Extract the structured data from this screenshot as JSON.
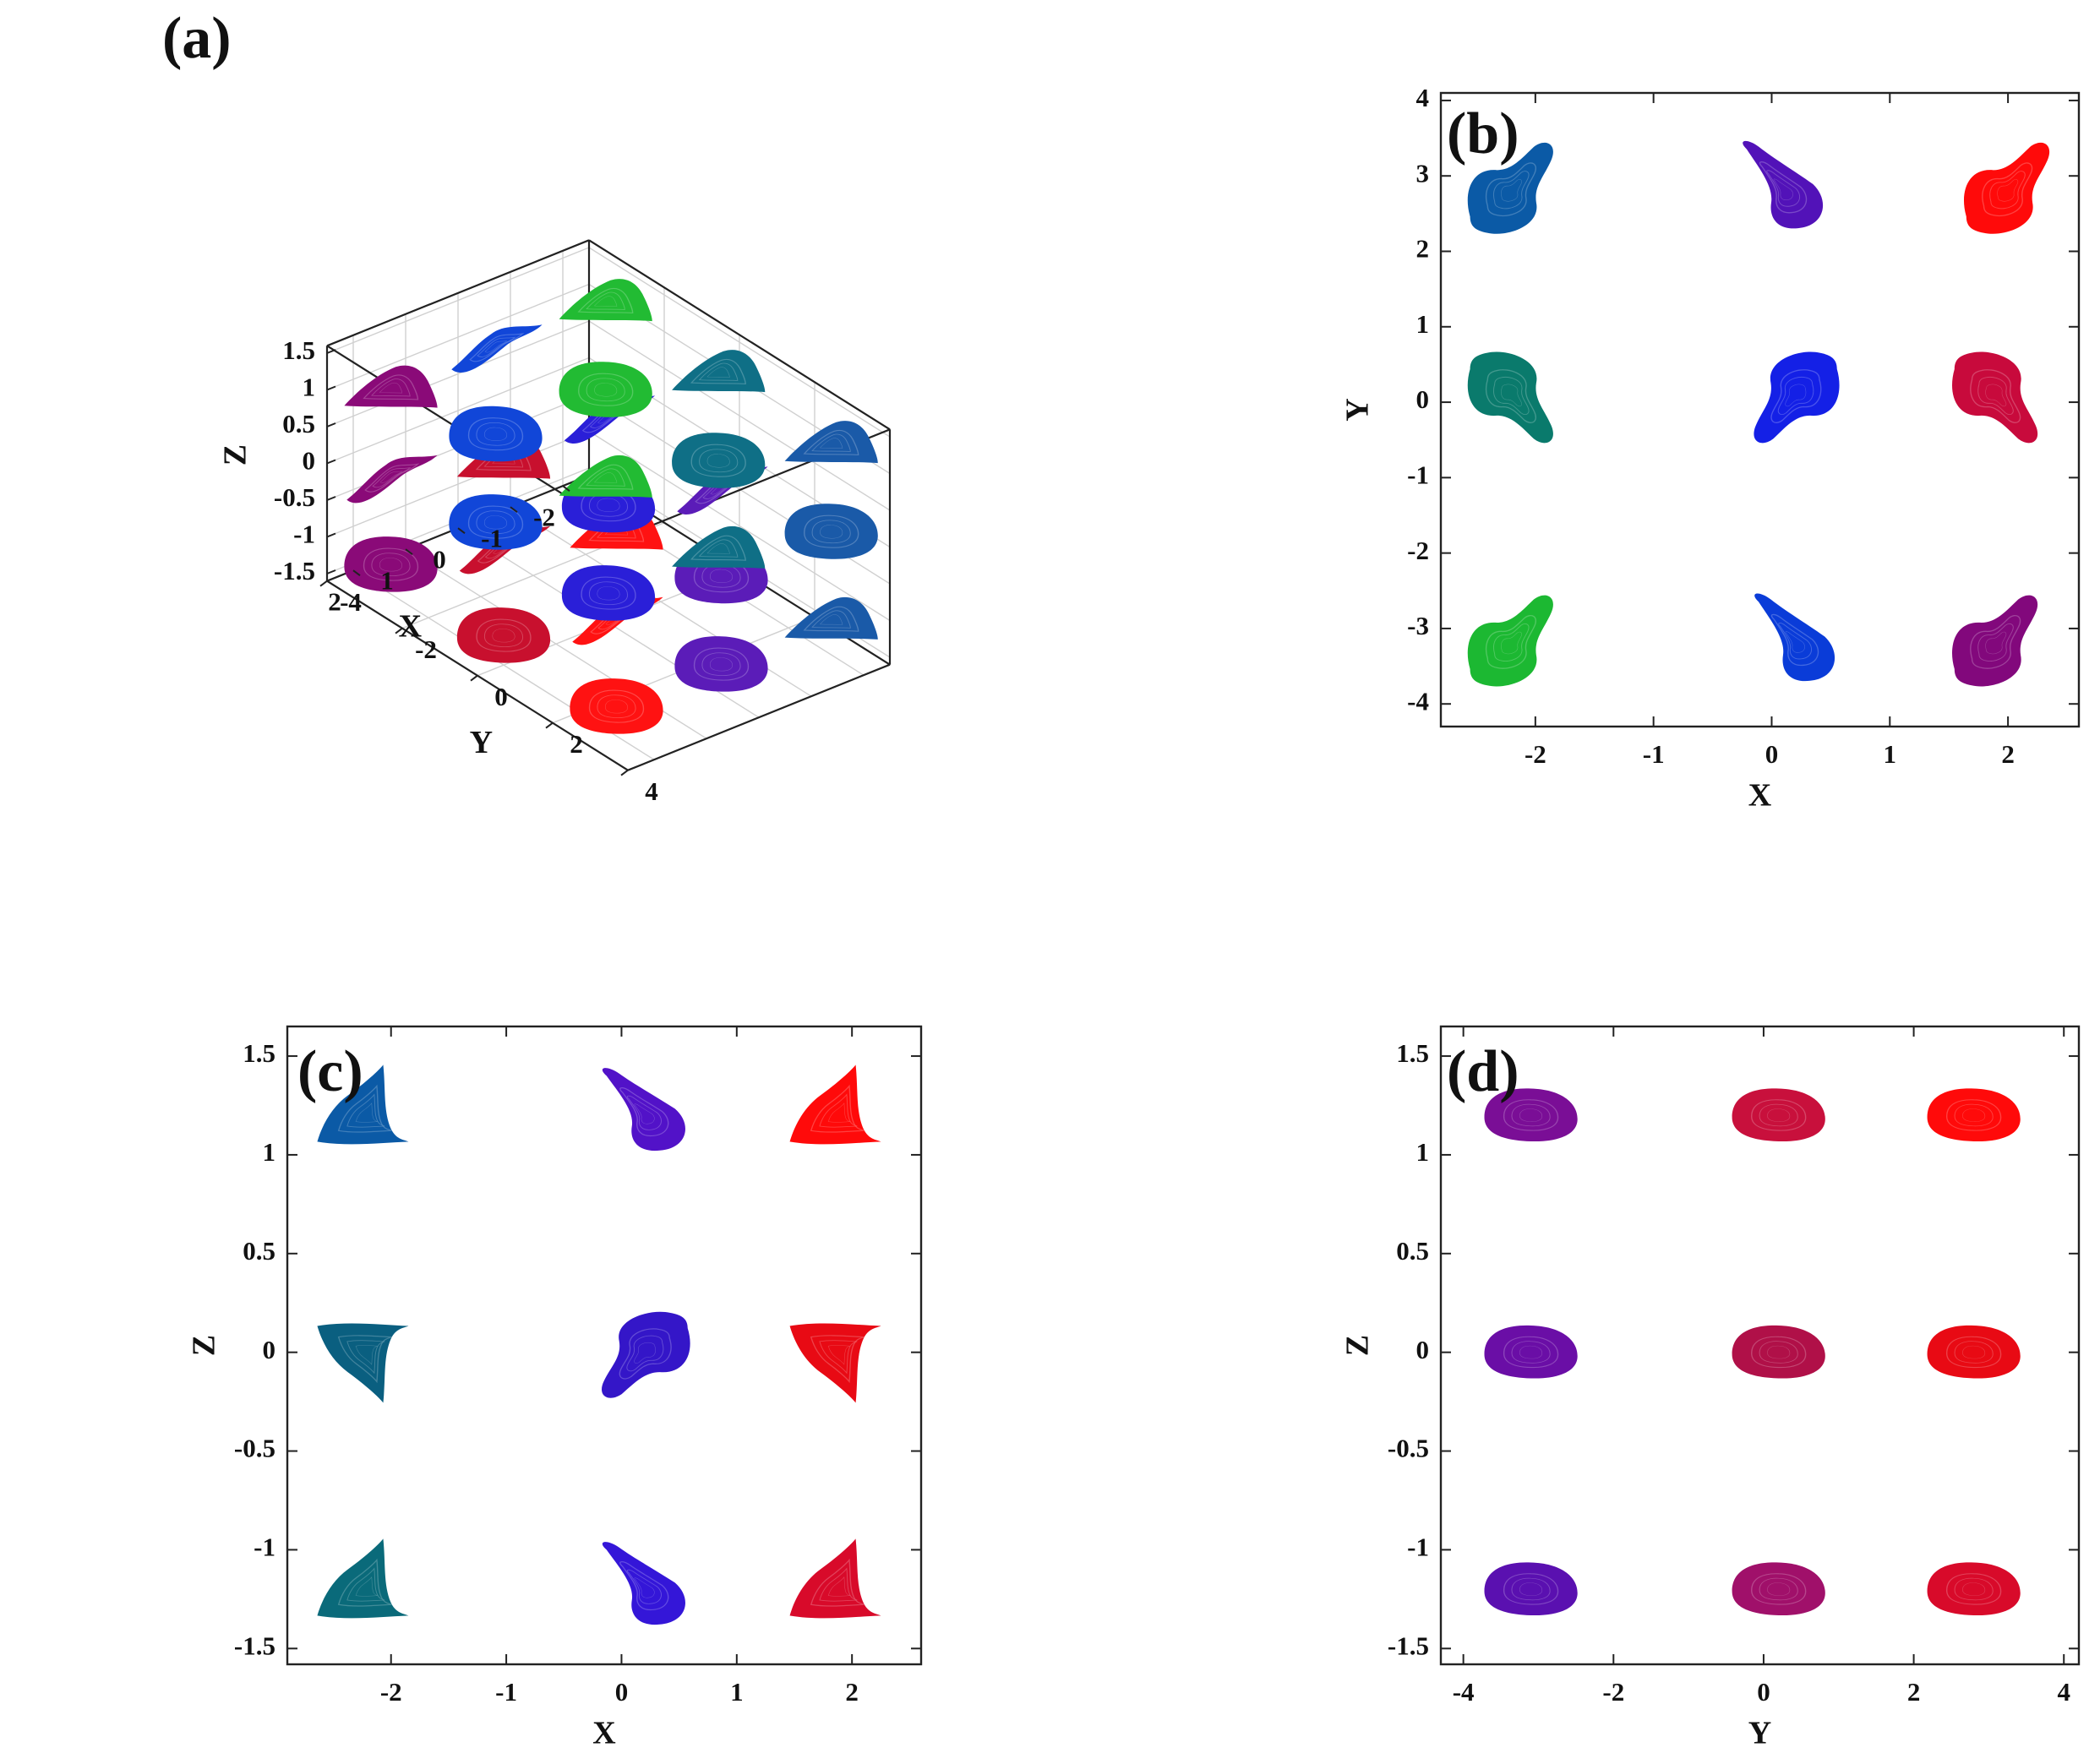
{
  "chart_data": [
    {
      "panel": "(a)",
      "type": "scatter",
      "projection": "3d",
      "xlabel": "X",
      "ylabel": "Y",
      "zlabel": "Z",
      "xlim": [
        -2.5,
        2.5
      ],
      "ylim": [
        -4,
        4
      ],
      "zlim": [
        -1.6,
        1.6
      ],
      "x_ticks": [
        -2,
        -1,
        0,
        1,
        2
      ],
      "y_ticks": [
        -4,
        -2,
        0,
        2,
        4
      ],
      "z_ticks": [
        -1.5,
        -1,
        -0.5,
        0,
        0.5,
        1,
        1.5
      ],
      "x_tick_labels": [
        "-2",
        "-1",
        "0",
        "1",
        "2"
      ],
      "y_tick_labels": [
        "-4",
        "-2",
        "0",
        "2",
        "4"
      ],
      "z_tick_labels": [
        "-1.5",
        "-1",
        "-0.5",
        "0",
        "0.5",
        "1",
        "1.5"
      ],
      "grid": true,
      "attractors": [
        {
          "x": -2.1,
          "y": 3,
          "z": 1.2,
          "color": "#1a5aa8"
        },
        {
          "x": 0,
          "y": 3,
          "z": 1.2,
          "color": "#5b1cb8"
        },
        {
          "x": 2,
          "y": 3,
          "z": 1.2,
          "color": "#ff1212"
        },
        {
          "x": -2.1,
          "y": 0,
          "z": 1.2,
          "color": "#0f6f86"
        },
        {
          "x": 0,
          "y": 0,
          "z": 1.2,
          "color": "#2a1fd8"
        },
        {
          "x": 2,
          "y": 0,
          "z": 1.2,
          "color": "#c8102e"
        },
        {
          "x": -2.1,
          "y": -3,
          "z": 1.2,
          "color": "#22bb33"
        },
        {
          "x": 0,
          "y": -3,
          "z": 1.2,
          "color": "#1146d8"
        },
        {
          "x": 2,
          "y": -3,
          "z": 1.2,
          "color": "#8a0a78"
        },
        {
          "x": -2.1,
          "y": 3,
          "z": 0,
          "color": "#1a5aa8"
        },
        {
          "x": 0,
          "y": 3,
          "z": 0,
          "color": "#5b1cb8"
        },
        {
          "x": 2,
          "y": 3,
          "z": 0,
          "color": "#ff1212"
        },
        {
          "x": -2.1,
          "y": 0,
          "z": 0,
          "color": "#0f6f86"
        },
        {
          "x": 0,
          "y": 0,
          "z": 0,
          "color": "#2a1fd8"
        },
        {
          "x": 2,
          "y": 0,
          "z": 0,
          "color": "#c8102e"
        },
        {
          "x": -2.1,
          "y": -3,
          "z": 0,
          "color": "#22bb33"
        },
        {
          "x": 0,
          "y": -3,
          "z": 0,
          "color": "#1146d8"
        },
        {
          "x": 2,
          "y": -3,
          "z": 0,
          "color": "#8a0a78"
        },
        {
          "x": -2.1,
          "y": 3,
          "z": -1.2,
          "color": "#1a5aa8"
        },
        {
          "x": 0,
          "y": 3,
          "z": -1.2,
          "color": "#5b1cb8"
        },
        {
          "x": 2,
          "y": 3,
          "z": -1.2,
          "color": "#ff1212"
        },
        {
          "x": -2.1,
          "y": 0,
          "z": -1.2,
          "color": "#0f6f86"
        },
        {
          "x": 0,
          "y": 0,
          "z": -1.2,
          "color": "#2a1fd8"
        },
        {
          "x": 2,
          "y": 0,
          "z": -1.2,
          "color": "#c8102e"
        },
        {
          "x": -2.1,
          "y": -3,
          "z": -1.2,
          "color": "#22bb33"
        },
        {
          "x": 0,
          "y": -3,
          "z": -1.2,
          "color": "#1146d8"
        },
        {
          "x": 2,
          "y": -3,
          "z": -1.2,
          "color": "#8a0a78"
        }
      ]
    },
    {
      "panel": "(b)",
      "type": "scatter",
      "xlabel": "X",
      "ylabel": "Y",
      "xlim": [
        -2.8,
        2.6
      ],
      "ylim": [
        -4.3,
        4.1
      ],
      "x_ticks": [
        -2,
        -1,
        0,
        1,
        2
      ],
      "y_ticks": [
        -4,
        -3,
        -2,
        -1,
        0,
        1,
        2,
        3,
        4
      ],
      "x_tick_labels": [
        "-2",
        "-1",
        "0",
        "1",
        "2"
      ],
      "y_tick_labels": [
        "-4",
        "-3",
        "-2",
        "-1",
        "0",
        "1",
        "2",
        "3",
        "4"
      ],
      "grid": false,
      "attractors": [
        {
          "x": -2.2,
          "y": 2.8,
          "color": "#0b5aa6",
          "orient": "up-right"
        },
        {
          "x": 0.1,
          "y": 2.8,
          "color": "#5212b8",
          "orient": "up-left"
        },
        {
          "x": 2.0,
          "y": 2.8,
          "color": "#ff0a0a",
          "orient": "up-right"
        },
        {
          "x": -2.2,
          "y": 0.1,
          "color": "#0a7a6c",
          "orient": "down-right"
        },
        {
          "x": 0.2,
          "y": 0.1,
          "color": "#1420e6",
          "orient": "down-left"
        },
        {
          "x": 1.9,
          "y": 0.1,
          "color": "#c80a3c",
          "orient": "down-right"
        },
        {
          "x": -2.2,
          "y": -3.2,
          "color": "#1cb832",
          "orient": "up-right"
        },
        {
          "x": 0.2,
          "y": -3.2,
          "color": "#0a3cd8",
          "orient": "up-left"
        },
        {
          "x": 1.9,
          "y": -3.2,
          "color": "#82087c",
          "orient": "up-right"
        }
      ]
    },
    {
      "panel": "(c)",
      "type": "scatter",
      "xlabel": "X",
      "ylabel": "Z",
      "xlim": [
        -2.9,
        2.6
      ],
      "ylim": [
        -1.58,
        1.65
      ],
      "x_ticks": [
        -2,
        -1,
        0,
        1,
        2
      ],
      "y_ticks": [
        -1.5,
        -1,
        -0.5,
        0,
        0.5,
        1,
        1.5
      ],
      "x_tick_labels": [
        "-2",
        "-1",
        "0",
        "1",
        "2"
      ],
      "y_tick_labels": [
        "-1.5",
        "-1",
        "-0.5",
        "0",
        "0.5",
        "1",
        "1.5"
      ],
      "grid": false,
      "attractors": [
        {
          "x": -2.2,
          "y": 1.2,
          "color": "#0b5aa6",
          "orient": "up"
        },
        {
          "x": 0.2,
          "y": 1.2,
          "color": "#5212c8",
          "orient": "up-left"
        },
        {
          "x": 1.9,
          "y": 1.2,
          "color": "#ff0a0a",
          "orient": "up"
        },
        {
          "x": -2.2,
          "y": 0,
          "color": "#0a5f80",
          "orient": "down"
        },
        {
          "x": 0.2,
          "y": 0,
          "color": "#3416c8",
          "orient": "down-left"
        },
        {
          "x": 1.9,
          "y": 0,
          "color": "#e80a14",
          "orient": "down"
        },
        {
          "x": -2.2,
          "y": -1.2,
          "color": "#0a6a7a",
          "orient": "up"
        },
        {
          "x": 0.2,
          "y": -1.2,
          "color": "#3416d8",
          "orient": "up-left"
        },
        {
          "x": 1.9,
          "y": -1.2,
          "color": "#d80a2a",
          "orient": "up"
        }
      ]
    },
    {
      "panel": "(d)",
      "type": "scatter",
      "xlabel": "Y",
      "ylabel": "Z",
      "xlim": [
        -4.3,
        4.2
      ],
      "ylim": [
        -1.58,
        1.65
      ],
      "x_ticks": [
        -4,
        -2,
        0,
        2,
        4
      ],
      "y_ticks": [
        -1.5,
        -1,
        -0.5,
        0,
        0.5,
        1,
        1.5
      ],
      "x_tick_labels": [
        "-4",
        "-2",
        "0",
        "2",
        "4"
      ],
      "y_tick_labels": [
        "-1.5",
        "-1",
        "-0.5",
        "0",
        "0.5",
        "1",
        "1.5"
      ],
      "grid": false,
      "attractors": [
        {
          "x": -3.1,
          "y": 1.2,
          "color": "#7a0e96"
        },
        {
          "x": 0.2,
          "y": 1.2,
          "color": "#c8103c"
        },
        {
          "x": 2.8,
          "y": 1.2,
          "color": "#ff0a0a"
        },
        {
          "x": -3.1,
          "y": 0,
          "color": "#6a0ea6"
        },
        {
          "x": 0.2,
          "y": 0,
          "color": "#b01048"
        },
        {
          "x": 2.8,
          "y": 0,
          "color": "#e80a14"
        },
        {
          "x": -3.1,
          "y": -1.2,
          "color": "#5a10b0"
        },
        {
          "x": 0.2,
          "y": -1.2,
          "color": "#a0106a"
        },
        {
          "x": 2.8,
          "y": -1.2,
          "color": "#d80a2a"
        }
      ]
    }
  ]
}
